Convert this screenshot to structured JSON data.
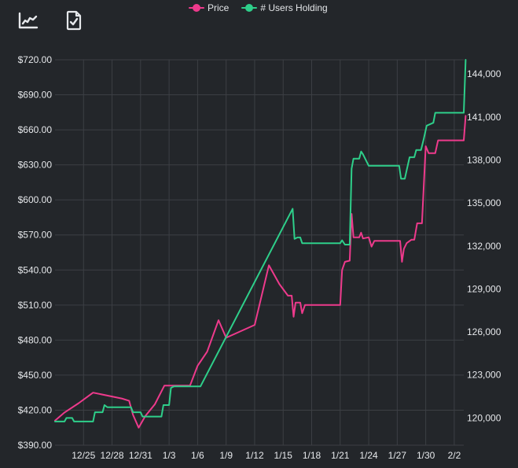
{
  "toolbar": {
    "chart_icon": "line-chart-icon",
    "doc_icon": "document-check-icon"
  },
  "colors": {
    "background": "#23262a",
    "grid": "#3c3f44",
    "price": "#ee3a8c",
    "users": "#2ecf8a",
    "text": "#e6e8eb"
  },
  "legend": {
    "price_label": "Price",
    "users_label": "# Users Holding"
  },
  "chart_data": {
    "type": "line",
    "x_ticks": [
      "12/25",
      "12/28",
      "12/31",
      "1/3",
      "1/6",
      "1/9",
      "1/12",
      "1/15",
      "1/18",
      "1/21",
      "1/24",
      "1/27",
      "1/30",
      "2/2"
    ],
    "y_left_ticks": [
      "$390.00",
      "$420.00",
      "$450.00",
      "$480.00",
      "$510.00",
      "$540.00",
      "$570.00",
      "$600.00",
      "$630.00",
      "$660.00",
      "$690.00",
      "$720.00"
    ],
    "y_right_ticks": [
      "120,000",
      "123,000",
      "126,000",
      "129,000",
      "132,000",
      "135,000",
      "138,000",
      "141,000",
      "144,000"
    ],
    "y_left_range": [
      390,
      720
    ],
    "y_right_range": [
      118100,
      145000
    ],
    "x_range": [
      "2020-12-22",
      "2021-02-03"
    ],
    "grid": true,
    "legend_position": "top",
    "series": [
      {
        "name": "Price",
        "axis": "left",
        "points": [
          [
            "2020-12-22",
            411
          ],
          [
            "2020-12-23",
            418
          ],
          [
            "2020-12-24.5",
            426
          ],
          [
            "2020-12-26",
            435
          ],
          [
            "2020-12-29",
            430
          ],
          [
            "2020-12-29.8",
            428
          ],
          [
            "2020-12-30.2",
            416
          ],
          [
            "2020-12-30.8",
            405
          ],
          [
            "2020-12-31.5",
            415
          ],
          [
            "2021-01-01.5",
            425
          ],
          [
            "2021-01-02.5",
            441
          ],
          [
            "2021-01-05.2",
            441
          ],
          [
            "2021-01-06",
            458
          ],
          [
            "2021-01-07",
            470
          ],
          [
            "2021-01-08.2",
            497
          ],
          [
            "2021-01-09",
            482
          ],
          [
            "2021-01-12",
            493
          ],
          [
            "2021-01-13.5",
            544
          ],
          [
            "2021-01-14.6",
            528
          ],
          [
            "2021-01-15.5",
            518
          ],
          [
            "2021-01-15.9",
            518
          ],
          [
            "2021-01-16.1",
            500
          ],
          [
            "2021-01-16.3",
            512
          ],
          [
            "2021-01-16.8",
            512
          ],
          [
            "2021-01-17",
            503
          ],
          [
            "2021-01-17.3",
            510
          ],
          [
            "2021-01-21",
            510
          ],
          [
            "2021-01-21.2",
            540
          ],
          [
            "2021-01-21.5",
            547
          ],
          [
            "2021-01-22",
            548
          ],
          [
            "2021-01-22.2",
            588
          ],
          [
            "2021-01-22.4",
            568
          ],
          [
            "2021-01-23",
            568
          ],
          [
            "2021-01-23.2",
            572
          ],
          [
            "2021-01-23.4",
            567
          ],
          [
            "2021-01-24",
            568
          ],
          [
            "2021-01-24.3",
            560
          ],
          [
            "2021-01-24.6",
            565
          ],
          [
            "2021-01-27.3",
            565
          ],
          [
            "2021-01-27.5",
            547
          ],
          [
            "2021-01-27.7",
            558
          ],
          [
            "2021-01-28",
            563
          ],
          [
            "2021-01-28.5",
            566
          ],
          [
            "2021-01-28.8",
            566
          ],
          [
            "2021-01-29.1",
            580
          ],
          [
            "2021-01-29.6",
            580
          ],
          [
            "2021-01-30",
            646
          ],
          [
            "2021-01-30.3",
            640
          ],
          [
            "2021-01-31",
            640
          ],
          [
            "2021-01-31.3",
            651
          ],
          [
            "2021-02-03",
            651
          ],
          [
            "2021-02-03.2",
            672
          ]
        ]
      },
      {
        "name": "# Users Holding",
        "axis": "right",
        "points": [
          [
            "2020-12-22",
            119750
          ],
          [
            "2020-12-23",
            119750
          ],
          [
            "2020-12-23.2",
            120000
          ],
          [
            "2020-12-23.8",
            120000
          ],
          [
            "2020-12-24",
            119750
          ],
          [
            "2020-12-26",
            119750
          ],
          [
            "2020-12-26.2",
            120400
          ],
          [
            "2020-12-27",
            120400
          ],
          [
            "2020-12-27.2",
            120900
          ],
          [
            "2020-12-27.5",
            120750
          ],
          [
            "2020-12-30",
            120750
          ],
          [
            "2020-12-30.2",
            120400
          ],
          [
            "2020-12-31",
            120400
          ],
          [
            "2020-12-31.2",
            120100
          ],
          [
            "2021-01-02.2",
            120100
          ],
          [
            "2021-01-02.4",
            120900
          ],
          [
            "2021-01-03",
            120900
          ],
          [
            "2021-01-03.2",
            122100
          ],
          [
            "2021-01-03.5",
            122200
          ],
          [
            "2021-01-06.3",
            122200
          ],
          [
            "2021-01-16",
            134600
          ],
          [
            "2021-01-16.2",
            132500
          ],
          [
            "2021-01-16.5",
            132600
          ],
          [
            "2021-01-16.8",
            132600
          ],
          [
            "2021-01-17",
            132200
          ],
          [
            "2021-01-21",
            132200
          ],
          [
            "2021-01-21.2",
            132400
          ],
          [
            "2021-01-21.5",
            132100
          ],
          [
            "2021-01-22",
            132100
          ],
          [
            "2021-01-22.2",
            137400
          ],
          [
            "2021-01-22.4",
            138100
          ],
          [
            "2021-01-23",
            138100
          ],
          [
            "2021-01-23.2",
            138600
          ],
          [
            "2021-01-23.4",
            138400
          ],
          [
            "2021-01-24",
            137600
          ],
          [
            "2021-01-27.2",
            137600
          ],
          [
            "2021-01-27.4",
            136700
          ],
          [
            "2021-01-27.8",
            136700
          ],
          [
            "2021-01-28",
            137300
          ],
          [
            "2021-01-28.3",
            138200
          ],
          [
            "2021-01-28.8",
            138200
          ],
          [
            "2021-01-29",
            138700
          ],
          [
            "2021-01-29.5",
            138700
          ],
          [
            "2021-01-29.8",
            139500
          ],
          [
            "2021-01-30.1",
            140400
          ],
          [
            "2021-01-30.8",
            140600
          ],
          [
            "2021-01-31",
            141300
          ],
          [
            "2021-02-03",
            141300
          ],
          [
            "2021-02-03.2",
            145000
          ]
        ]
      }
    ]
  }
}
